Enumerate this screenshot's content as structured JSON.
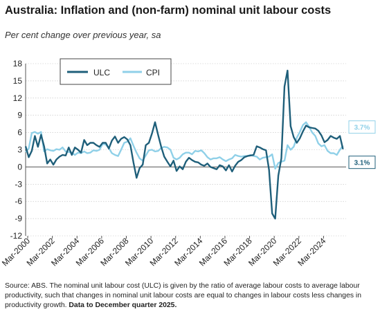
{
  "header": {
    "title": "Australia: Inflation and (non-farm) nominal unit labour costs",
    "subtitle": "Per cent change over previous year, sa"
  },
  "footnote": {
    "text": "Source: ABS. The nominal unit labour cost (ULC) is given by the ratio of average labour costs to average labour productivity, such that changes in nominal unit labour costs are equal to changes in labour costs less changes in productivity growth.",
    "bold": "Data to December quarter 2025."
  },
  "colors": {
    "ulc": "#1f5f7a",
    "cpi": "#8fd0e8",
    "axis": "#555555",
    "grid": "#bdbdbd"
  },
  "chart_data": {
    "type": "line",
    "title": "Australia: Inflation and (non-farm) nominal unit labour costs",
    "subtitle": "Per cent change over previous year, sa",
    "ylim": [
      -12,
      18
    ],
    "yticks": [
      18,
      15,
      12,
      9,
      6,
      3,
      0,
      -3,
      -6,
      -9,
      -12
    ],
    "xlim": [
      2000.0,
      2026.0
    ],
    "xticks": [
      {
        "value": 2000.17,
        "label": "Mar-2000"
      },
      {
        "value": 2002.17,
        "label": "Mar-2002"
      },
      {
        "value": 2004.17,
        "label": "Mar-2004"
      },
      {
        "value": 2006.17,
        "label": "Mar-2006"
      },
      {
        "value": 2008.17,
        "label": "Mar-2008"
      },
      {
        "value": 2010.17,
        "label": "Mar-2010"
      },
      {
        "value": 2012.17,
        "label": "Mar-2012"
      },
      {
        "value": 2014.17,
        "label": "Mar-2014"
      },
      {
        "value": 2016.17,
        "label": "Mar-2016"
      },
      {
        "value": 2018.17,
        "label": "Mar-2018"
      },
      {
        "value": 2020.17,
        "label": "Mar-2020"
      },
      {
        "value": 2022.17,
        "label": "Mar-2022"
      },
      {
        "value": 2024.17,
        "label": "Mar-2024"
      }
    ],
    "legend": {
      "position": "top-left"
    },
    "series": [
      {
        "name": "ULC",
        "end_label": "3.1%",
        "x": [
          2000.0,
          2000.25,
          2000.5,
          2000.75,
          2001.0,
          2001.25,
          2001.5,
          2001.75,
          2002.0,
          2002.25,
          2002.5,
          2002.75,
          2003.0,
          2003.25,
          2003.5,
          2003.75,
          2004.0,
          2004.25,
          2004.5,
          2004.75,
          2005.0,
          2005.25,
          2005.5,
          2005.75,
          2006.0,
          2006.25,
          2006.5,
          2006.75,
          2007.0,
          2007.25,
          2007.5,
          2007.75,
          2008.0,
          2008.25,
          2008.5,
          2008.75,
          2009.0,
          2009.25,
          2009.5,
          2009.75,
          2010.0,
          2010.25,
          2010.5,
          2010.75,
          2011.0,
          2011.25,
          2011.5,
          2011.75,
          2012.0,
          2012.25,
          2012.5,
          2012.75,
          2013.0,
          2013.25,
          2013.5,
          2013.75,
          2014.0,
          2014.25,
          2014.5,
          2014.75,
          2015.0,
          2015.25,
          2015.5,
          2015.75,
          2016.0,
          2016.25,
          2016.5,
          2016.75,
          2017.0,
          2017.25,
          2017.5,
          2017.75,
          2018.0,
          2018.25,
          2018.5,
          2018.75,
          2019.0,
          2019.25,
          2019.5,
          2019.75,
          2020.0,
          2020.25,
          2020.5,
          2020.75,
          2021.0,
          2021.25,
          2021.5,
          2021.75,
          2022.0,
          2022.25,
          2022.5,
          2022.75,
          2023.0,
          2023.25,
          2023.5,
          2023.75,
          2024.0,
          2024.25,
          2024.5,
          2024.75,
          2025.0,
          2025.25,
          2025.5,
          2025.75
        ],
        "values": [
          3.6,
          1.7,
          2.8,
          5.4,
          3.5,
          5.6,
          3.6,
          0.6,
          1.3,
          0.4,
          1.3,
          1.8,
          2.1,
          2.0,
          3.4,
          2.1,
          3.4,
          3.0,
          2.5,
          4.7,
          3.8,
          4.2,
          4.2,
          3.8,
          3.5,
          4.2,
          4.2,
          3.2,
          4.6,
          5.3,
          4.2,
          4.9,
          5.2,
          4.8,
          3.8,
          0.8,
          -1.9,
          -0.2,
          0.4,
          3.8,
          4.2,
          5.8,
          7.8,
          5.6,
          3.5,
          1.8,
          0.9,
          0.1,
          1.1,
          -0.7,
          0.1,
          -0.4,
          0.9,
          1.6,
          1.2,
          0.9,
          0.8,
          0.4,
          0.2,
          0.6,
          0.0,
          -0.2,
          -0.4,
          0.3,
          0.1,
          -0.6,
          0.3,
          -0.8,
          0.2,
          0.9,
          1.2,
          1.7,
          1.9,
          2.0,
          2.1,
          3.6,
          3.4,
          3.1,
          2.9,
          -0.5,
          -8.1,
          -9.0,
          -1.5,
          1.5,
          14.0,
          16.8,
          7.1,
          5.2,
          4.2,
          5.0,
          6.2,
          7.2,
          6.9,
          6.8,
          6.7,
          6.3,
          5.5,
          4.3,
          4.7,
          5.4,
          5.1,
          4.9,
          5.4,
          3.1
        ]
      },
      {
        "name": "CPI",
        "end_label": "3.7%",
        "x": [
          2000.0,
          2000.25,
          2000.5,
          2000.75,
          2001.0,
          2001.25,
          2001.5,
          2001.75,
          2002.0,
          2002.25,
          2002.5,
          2002.75,
          2003.0,
          2003.25,
          2003.5,
          2003.75,
          2004.0,
          2004.25,
          2004.5,
          2004.75,
          2005.0,
          2005.25,
          2005.5,
          2005.75,
          2006.0,
          2006.25,
          2006.5,
          2006.75,
          2007.0,
          2007.25,
          2007.5,
          2007.75,
          2008.0,
          2008.25,
          2008.5,
          2008.75,
          2009.0,
          2009.25,
          2009.5,
          2009.75,
          2010.0,
          2010.25,
          2010.5,
          2010.75,
          2011.0,
          2011.25,
          2011.5,
          2011.75,
          2012.0,
          2012.25,
          2012.5,
          2012.75,
          2013.0,
          2013.25,
          2013.5,
          2013.75,
          2014.0,
          2014.25,
          2014.5,
          2014.75,
          2015.0,
          2015.25,
          2015.5,
          2015.75,
          2016.0,
          2016.25,
          2016.5,
          2016.75,
          2017.0,
          2017.25,
          2017.5,
          2017.75,
          2018.0,
          2018.25,
          2018.5,
          2018.75,
          2019.0,
          2019.25,
          2019.5,
          2019.75,
          2020.0,
          2020.25,
          2020.5,
          2020.75,
          2021.0,
          2021.25,
          2021.5,
          2021.75,
          2022.0,
          2022.25,
          2022.5,
          2022.75,
          2023.0,
          2023.25,
          2023.5,
          2023.75,
          2024.0,
          2024.25,
          2024.5,
          2024.75,
          2025.0,
          2025.25,
          2025.5,
          2025.75
        ],
        "values": [
          2.6,
          3.2,
          5.9,
          6.1,
          5.8,
          6.1,
          2.7,
          3.1,
          2.9,
          2.8,
          3.1,
          3.0,
          3.4,
          2.7,
          2.6,
          2.5,
          2.1,
          2.5,
          2.4,
          2.7,
          2.4,
          2.5,
          2.9,
          2.8,
          3.0,
          4.0,
          3.9,
          3.3,
          2.4,
          2.1,
          1.9,
          3.0,
          4.2,
          4.4,
          5.0,
          3.7,
          2.5,
          1.5,
          1.1,
          2.0,
          2.9,
          3.0,
          2.7,
          2.8,
          3.3,
          3.5,
          3.4,
          3.0,
          1.6,
          1.3,
          1.6,
          2.2,
          2.5,
          2.5,
          2.2,
          2.8,
          2.7,
          2.9,
          2.4,
          1.7,
          1.3,
          1.5,
          1.5,
          1.7,
          1.3,
          1.0,
          1.3,
          1.5,
          2.1,
          1.9,
          1.8,
          1.9,
          1.9,
          2.1,
          1.9,
          1.8,
          1.3,
          1.6,
          1.7,
          1.8,
          2.2,
          -0.3,
          0.7,
          0.9,
          1.1,
          3.8,
          3.0,
          3.5,
          5.1,
          6.1,
          7.3,
          7.8,
          7.0,
          6.0,
          5.4,
          4.1,
          3.6,
          3.8,
          2.8,
          2.4,
          2.4,
          2.1,
          3.0,
          3.7
        ]
      }
    ]
  }
}
